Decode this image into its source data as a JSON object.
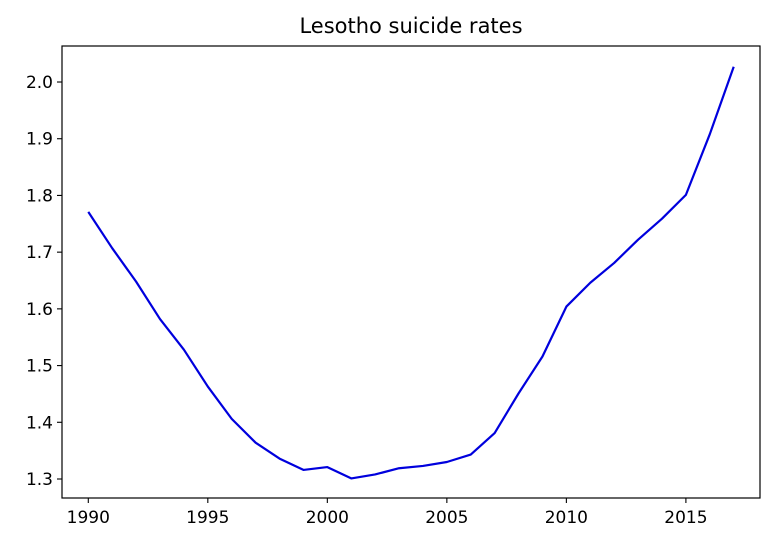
{
  "chart_data": {
    "type": "line",
    "title": "Lesotho suicide rates",
    "xlabel": "",
    "ylabel": "",
    "xlim": [
      1988.9,
      2018.1
    ],
    "ylim": [
      1.2665,
      2.0635
    ],
    "x_ticks": [
      1990,
      1995,
      2000,
      2005,
      2010,
      2015
    ],
    "y_ticks": [
      1.3,
      1.4,
      1.5,
      1.6,
      1.7,
      1.8,
      1.9,
      2.0
    ],
    "y_tick_labels": [
      "1.3",
      "1.4",
      "1.5",
      "1.6",
      "1.7",
      "1.8",
      "1.9",
      "2.0"
    ],
    "grid": false,
    "legend": "none",
    "series": [
      {
        "color": "#0000dd",
        "x": [
          1990,
          1991,
          1992,
          1993,
          1994,
          1995,
          1996,
          1997,
          1998,
          1999,
          2000,
          2001,
          2002,
          2003,
          2004,
          2005,
          2006,
          2007,
          2008,
          2009,
          2010,
          2011,
          2012,
          2013,
          2014,
          2015,
          2016,
          2017
        ],
        "y": [
          1.771,
          1.707,
          1.648,
          1.582,
          1.528,
          1.463,
          1.406,
          1.364,
          1.336,
          1.316,
          1.321,
          1.301,
          1.308,
          1.319,
          1.323,
          1.33,
          1.343,
          1.381,
          1.451,
          1.516,
          1.604,
          1.646,
          1.681,
          1.722,
          1.759,
          1.801,
          1.908,
          2.027
        ]
      }
    ]
  }
}
